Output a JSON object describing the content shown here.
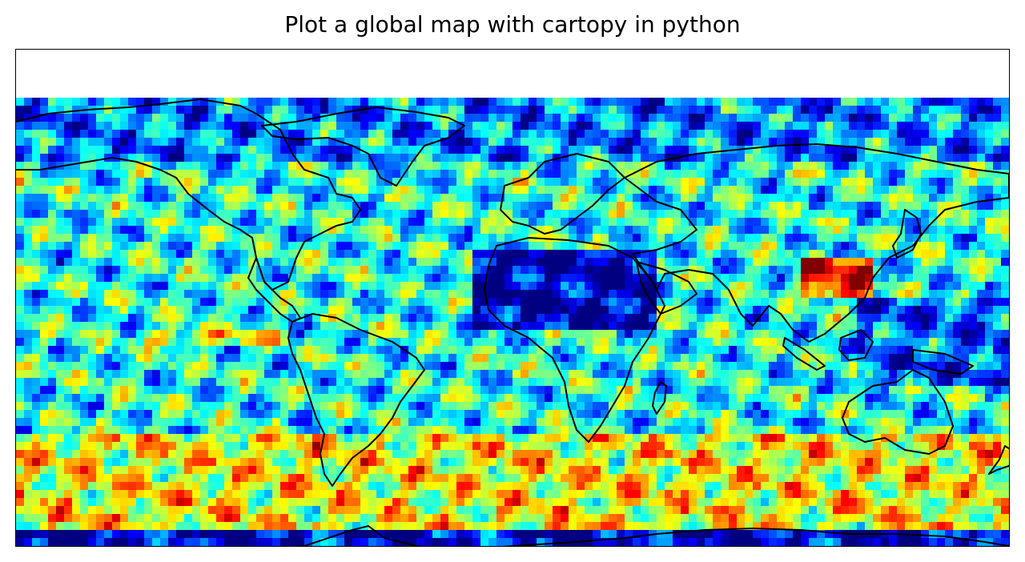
{
  "chart_data": {
    "type": "heatmap",
    "title": "Plot a global map with cartopy in python",
    "projection": "PlateCarree",
    "extent_lon": [
      -180,
      180
    ],
    "extent_lat": [
      -90,
      90
    ],
    "data_lat_range": [
      -90,
      70
    ],
    "colormap": "jet",
    "coastlines": true,
    "grid": false,
    "colorbar": false
  }
}
